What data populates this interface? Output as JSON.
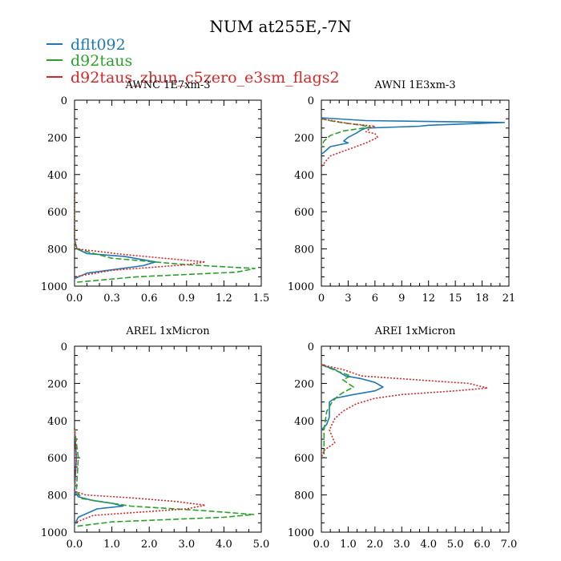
{
  "title": "NUM at255E,-7N",
  "legend": [
    {
      "label": "dflt092",
      "color": "#1f77b4"
    },
    {
      "label": "d92taus",
      "color": "#2ca02c"
    },
    {
      "label": "d92taus_zhun_c5zero_e3sm_flags2",
      "color": "#d62728"
    }
  ],
  "chart_data": [
    {
      "type": "line",
      "title": "AWNC  1E7xm-3",
      "xlim": [
        0,
        1.5
      ],
      "ylim": [
        1000,
        0
      ],
      "xticks": [
        "0.0",
        "0.3",
        "0.6",
        "0.9",
        "1.2",
        "1.5"
      ],
      "yticks": [
        "0",
        "200",
        "400",
        "600",
        "800",
        "1000"
      ],
      "series": [
        {
          "name": "dflt092",
          "color": "#1f77b4",
          "dash": "solid",
          "points": [
            [
              0.0,
              500
            ],
            [
              0.0,
              750
            ],
            [
              0.02,
              800
            ],
            [
              0.1,
              825
            ],
            [
              0.4,
              840
            ],
            [
              0.65,
              870
            ],
            [
              0.55,
              890
            ],
            [
              0.1,
              930
            ],
            [
              0.0,
              960
            ]
          ]
        },
        {
          "name": "d92taus",
          "color": "#2ca02c",
          "dash": "dashed",
          "points": [
            [
              0.0,
              500
            ],
            [
              0.0,
              760
            ],
            [
              0.02,
              800
            ],
            [
              0.3,
              850
            ],
            [
              0.9,
              885
            ],
            [
              1.45,
              905
            ],
            [
              1.3,
              925
            ],
            [
              0.5,
              950
            ],
            [
              0.0,
              980
            ]
          ]
        },
        {
          "name": "d92taus_zhun_c5zero_e3sm_flags2",
          "color": "#d62728",
          "dash": "dotted",
          "points": [
            [
              0.0,
              500
            ],
            [
              0.0,
              750
            ],
            [
              0.02,
              800
            ],
            [
              0.4,
              830
            ],
            [
              0.8,
              855
            ],
            [
              1.05,
              870
            ],
            [
              0.9,
              885
            ],
            [
              0.3,
              915
            ],
            [
              0.0,
              950
            ]
          ]
        }
      ]
    },
    {
      "type": "line",
      "title": "AWNI  1E3xm-3",
      "xlim": [
        0,
        21
      ],
      "ylim": [
        1000,
        0
      ],
      "xticks": [
        "0",
        "3",
        "6",
        "9",
        "12",
        "15",
        "18",
        "21"
      ],
      "yticks": [
        "0",
        "200",
        "400",
        "600",
        "800",
        "1000"
      ],
      "series": [
        {
          "name": "dflt092",
          "color": "#1f77b4",
          "dash": "solid",
          "points": [
            [
              0.0,
              95
            ],
            [
              5,
              110
            ],
            [
              20.5,
              120
            ],
            [
              12,
              135
            ],
            [
              11,
              140
            ],
            [
              5,
              150
            ],
            [
              4.5,
              160
            ],
            [
              4.0,
              175
            ],
            [
              3.0,
              200
            ],
            [
              2.5,
              220
            ],
            [
              3.0,
              230
            ],
            [
              1.0,
              250
            ],
            [
              0.3,
              280
            ],
            [
              0.0,
              290
            ]
          ]
        },
        {
          "name": "d92taus",
          "color": "#2ca02c",
          "dash": "dashed",
          "points": [
            [
              0.0,
              100
            ],
            [
              1.5,
              115
            ],
            [
              4.5,
              135
            ],
            [
              5.5,
              145
            ],
            [
              2.5,
              165
            ],
            [
              1.0,
              190
            ],
            [
              0.3,
              220
            ],
            [
              0.0,
              250
            ]
          ]
        },
        {
          "name": "d92taus_zhun_c5zero_e3sm_flags2",
          "color": "#d62728",
          "dash": "dotted",
          "points": [
            [
              0.0,
              100
            ],
            [
              3.0,
              125
            ],
            [
              6.0,
              140
            ],
            [
              5.5,
              150
            ],
            [
              5.0,
              170
            ],
            [
              6.0,
              180
            ],
            [
              6.3,
              200
            ],
            [
              5.0,
              230
            ],
            [
              3.0,
              265
            ],
            [
              1.0,
              300
            ],
            [
              0.3,
              340
            ],
            [
              0.0,
              360
            ]
          ]
        }
      ]
    },
    {
      "type": "line",
      "title": "AREL  1xMicron",
      "xlim": [
        0,
        5.0
      ],
      "ylim": [
        1000,
        0
      ],
      "xticks": [
        "0.0",
        "1.0",
        "2.0",
        "3.0",
        "4.0",
        "5.0"
      ],
      "yticks": [
        "0",
        "200",
        "400",
        "600",
        "800",
        "1000"
      ],
      "series": [
        {
          "name": "dflt092",
          "color": "#1f77b4",
          "dash": "solid",
          "points": [
            [
              0.0,
              440
            ],
            [
              0.05,
              600
            ],
            [
              0.0,
              780
            ],
            [
              0.1,
              810
            ],
            [
              0.5,
              830
            ],
            [
              1.0,
              845
            ],
            [
              1.3,
              860
            ],
            [
              0.6,
              875
            ],
            [
              0.1,
              920
            ],
            [
              0.0,
              960
            ]
          ]
        },
        {
          "name": "d92taus",
          "color": "#2ca02c",
          "dash": "dashed",
          "points": [
            [
              0.0,
              440
            ],
            [
              0.1,
              600
            ],
            [
              0.05,
              780
            ],
            [
              0.2,
              820
            ],
            [
              1.5,
              860
            ],
            [
              3.5,
              885
            ],
            [
              4.8,
              905
            ],
            [
              4.0,
              920
            ],
            [
              1.0,
              945
            ],
            [
              0.0,
              970
            ]
          ]
        },
        {
          "name": "d92taus_zhun_c5zero_e3sm_flags2",
          "color": "#d62728",
          "dash": "dotted",
          "points": [
            [
              0.0,
              440
            ],
            [
              0.05,
              600
            ],
            [
              0.0,
              780
            ],
            [
              0.3,
              800
            ],
            [
              1.5,
              815
            ],
            [
              2.7,
              835
            ],
            [
              3.5,
              855
            ],
            [
              3.0,
              875
            ],
            [
              0.5,
              910
            ],
            [
              0.0,
              950
            ]
          ]
        }
      ]
    },
    {
      "type": "line",
      "title": "AREI  1xMicron",
      "xlim": [
        0,
        7.0
      ],
      "ylim": [
        1000,
        0
      ],
      "xticks": [
        "0.0",
        "1.0",
        "2.0",
        "3.0",
        "4.0",
        "5.0",
        "6.0",
        "7.0"
      ],
      "yticks": [
        "0",
        "200",
        "400",
        "600",
        "800",
        "1000"
      ],
      "series": [
        {
          "name": "dflt092",
          "color": "#1f77b4",
          "dash": "solid",
          "points": [
            [
              0.0,
              100
            ],
            [
              0.5,
              125
            ],
            [
              0.9,
              160
            ],
            [
              1.5,
              175
            ],
            [
              2.0,
              195
            ],
            [
              2.3,
              220
            ],
            [
              2.0,
              240
            ],
            [
              1.2,
              260
            ],
            [
              0.5,
              280
            ],
            [
              0.3,
              300
            ],
            [
              0.3,
              380
            ],
            [
              0.2,
              420
            ],
            [
              0.0,
              450
            ]
          ]
        },
        {
          "name": "d92taus",
          "color": "#2ca02c",
          "dash": "dashed",
          "points": [
            [
              0.0,
              100
            ],
            [
              0.6,
              135
            ],
            [
              1.1,
              160
            ],
            [
              0.8,
              180
            ],
            [
              1.0,
              200
            ],
            [
              1.2,
              220
            ],
            [
              0.8,
              250
            ],
            [
              0.6,
              270
            ],
            [
              0.4,
              300
            ],
            [
              0.2,
              350
            ],
            [
              0.1,
              450
            ],
            [
              0.1,
              600
            ]
          ]
        },
        {
          "name": "d92taus_zhun_c5zero_e3sm_flags2",
          "color": "#d62728",
          "dash": "dotted",
          "points": [
            [
              0.0,
              100
            ],
            [
              0.8,
              125
            ],
            [
              1.5,
              160
            ],
            [
              3.5,
              180
            ],
            [
              5.5,
              200
            ],
            [
              6.2,
              225
            ],
            [
              5.0,
              240
            ],
            [
              3.0,
              260
            ],
            [
              2.0,
              280
            ],
            [
              1.3,
              310
            ],
            [
              0.8,
              350
            ],
            [
              0.5,
              390
            ],
            [
              0.3,
              450
            ],
            [
              0.5,
              520
            ],
            [
              0.1,
              560
            ],
            [
              0.0,
              600
            ]
          ]
        }
      ]
    }
  ]
}
